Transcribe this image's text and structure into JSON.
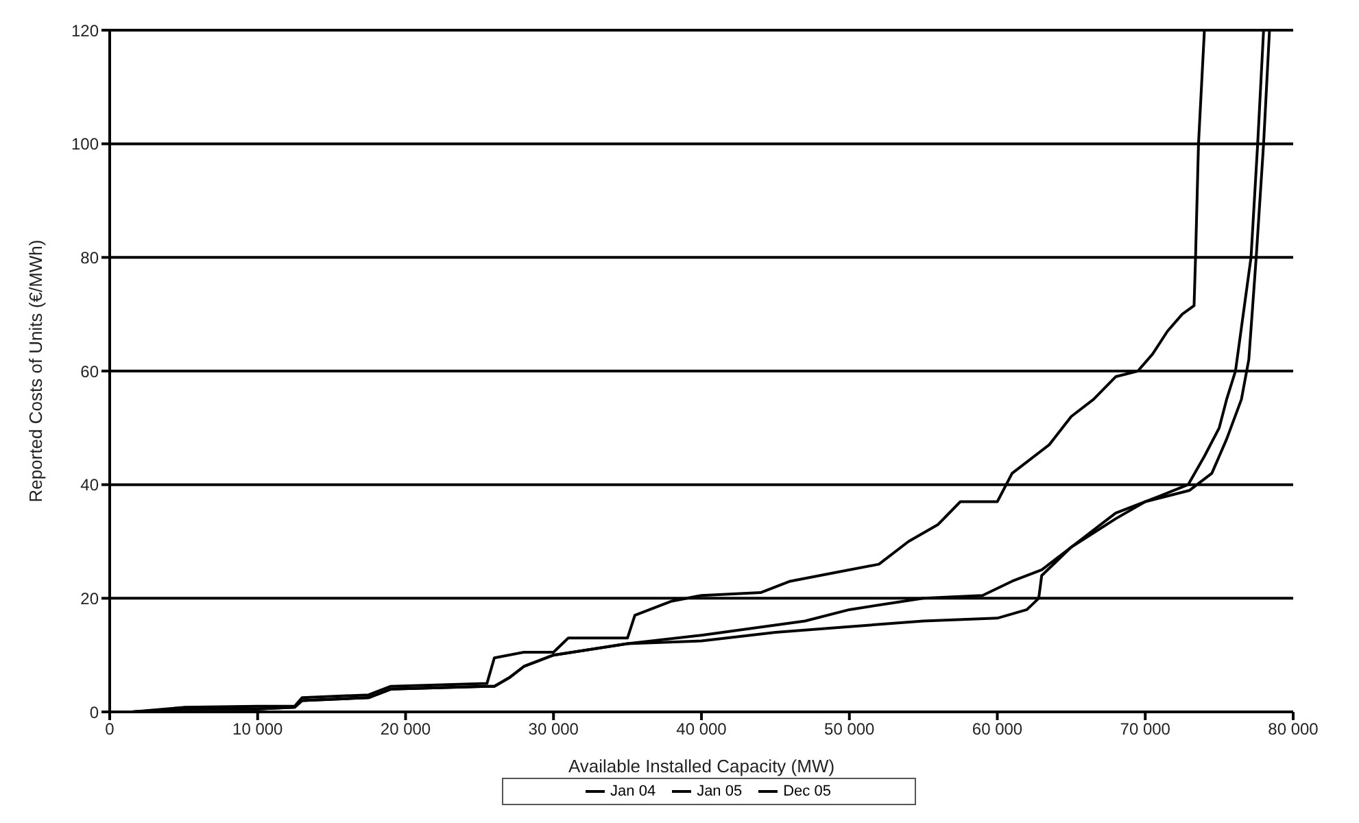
{
  "chart_data": {
    "type": "line",
    "xlabel": "Available Installed Capacity (MW)",
    "ylabel": "Reported Costs of Units (€/MWh)",
    "xlim": [
      0,
      80000
    ],
    "ylim": [
      0,
      120
    ],
    "xticks": [
      0,
      {
        "value": 10000,
        "label": "10 000"
      },
      {
        "value": 20000,
        "label": "20 000"
      },
      {
        "value": 30000,
        "label": "30 000"
      },
      {
        "value": 40000,
        "label": "40 000"
      },
      {
        "value": 50000,
        "label": "50 000"
      },
      {
        "value": 60000,
        "label": "60 000"
      },
      {
        "value": 70000,
        "label": "70 000"
      },
      {
        "value": 80000,
        "label": "80 000"
      }
    ],
    "yticks": [
      0,
      20,
      40,
      60,
      80,
      100,
      120
    ],
    "grid": "y",
    "legend": "bottom",
    "marker": "none",
    "line_style": "solid",
    "series": [
      {
        "name": "Jan 04",
        "color": "#000000",
        "x": [
          1500,
          5000,
          10000,
          12500,
          13000,
          17500,
          19000,
          25500,
          26000,
          27000,
          28000,
          30000,
          35000,
          40000,
          45000,
          50000,
          55000,
          60000,
          62000,
          62800,
          63000,
          65000,
          68000,
          70000,
          73000,
          74500,
          75500,
          76500,
          77000,
          77500,
          78000,
          78400
        ],
        "values": [
          0,
          0.5,
          0.5,
          0.8,
          2,
          2.5,
          4,
          4.5,
          4.5,
          6,
          8,
          10,
          12,
          12.5,
          14,
          15,
          16,
          16.5,
          18,
          20,
          24,
          29,
          34,
          37,
          39,
          42,
          48,
          55,
          62,
          80,
          100,
          120
        ]
      },
      {
        "name": "Jan 05",
        "color": "#000000",
        "x": [
          1500,
          5000,
          10000,
          12500,
          13000,
          17500,
          19000,
          25500,
          26000,
          27000,
          28000,
          30000,
          35000,
          40000,
          47000,
          50000,
          55000,
          59000,
          61000,
          63000,
          65000,
          68000,
          71000,
          72900,
          74000,
          75000,
          75500,
          76100,
          77150,
          77600,
          78000
        ],
        "values": [
          0,
          0.5,
          0.5,
          0.8,
          2,
          2.5,
          4,
          4.5,
          4.5,
          6,
          8,
          10,
          12,
          13.5,
          16,
          18,
          20,
          20.5,
          23,
          25,
          29,
          35,
          38,
          40,
          45,
          50,
          55,
          60,
          80,
          100,
          120
        ]
      },
      {
        "name": "Dec 05",
        "color": "#000000",
        "x": [
          1500,
          5000,
          10000,
          12500,
          13000,
          17500,
          19000,
          25500,
          26000,
          28000,
          30000,
          31000,
          35000,
          35500,
          38000,
          40000,
          44000,
          46000,
          49000,
          52000,
          54000,
          56000,
          57500,
          60000,
          61000,
          63500,
          65000,
          66500,
          68000,
          69500,
          70500,
          71500,
          72500,
          73300,
          73400,
          73600,
          74000
        ],
        "values": [
          0,
          0.8,
          1,
          1,
          2.5,
          3,
          4.5,
          5,
          9.5,
          10.5,
          10.5,
          13,
          13,
          17,
          19.5,
          20.5,
          21,
          23,
          24.5,
          26,
          30,
          33,
          37,
          37,
          42,
          47,
          52,
          55,
          59,
          60,
          63,
          67,
          70,
          71.5,
          80,
          100,
          120
        ]
      }
    ]
  }
}
